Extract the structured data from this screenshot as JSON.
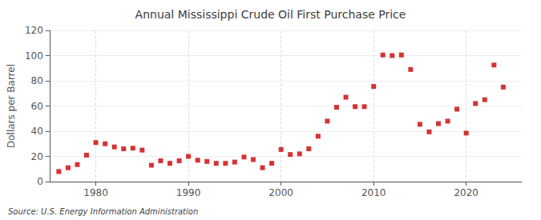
{
  "chart_data": {
    "type": "scatter",
    "title": "Annual Mississippi Crude Oil First Purchase Price",
    "ylabel": "Dollars per Barrel",
    "source": "Source: U.S. Energy Information Administration",
    "x": [
      1976,
      1977,
      1978,
      1979,
      1980,
      1981,
      1982,
      1983,
      1984,
      1985,
      1986,
      1987,
      1988,
      1989,
      1990,
      1991,
      1992,
      1993,
      1994,
      1995,
      1996,
      1997,
      1998,
      1999,
      2000,
      2001,
      2002,
      2003,
      2004,
      2005,
      2006,
      2007,
      2008,
      2009,
      2010,
      2011,
      2012,
      2013,
      2014,
      2015,
      2016,
      2017,
      2018,
      2019,
      2020,
      2021,
      2022,
      2023,
      2024
    ],
    "values": [
      8.0,
      11.0,
      13.5,
      21.0,
      31.0,
      30.0,
      27.5,
      26.0,
      26.5,
      25.0,
      13.0,
      16.5,
      14.5,
      16.5,
      20.0,
      17.0,
      16.0,
      14.5,
      14.5,
      15.5,
      19.5,
      17.5,
      11.0,
      14.5,
      25.5,
      21.5,
      22.0,
      26.0,
      36.0,
      48.0,
      59.0,
      67.0,
      59.5,
      59.5,
      75.5,
      100.5,
      100.0,
      100.5,
      89.0,
      45.5,
      39.5,
      46.0,
      48.0,
      57.5,
      38.5,
      62.0,
      65.0,
      92.5,
      75.0
    ],
    "color": "#cc0000",
    "marker": "square",
    "xlim": [
      1975,
      2026
    ],
    "ylim": [
      0,
      120
    ],
    "xticks": [
      1980,
      1990,
      2000,
      2010,
      2020
    ],
    "yticks": [
      0,
      20,
      40,
      60,
      80,
      100,
      120
    ],
    "grid": true
  }
}
